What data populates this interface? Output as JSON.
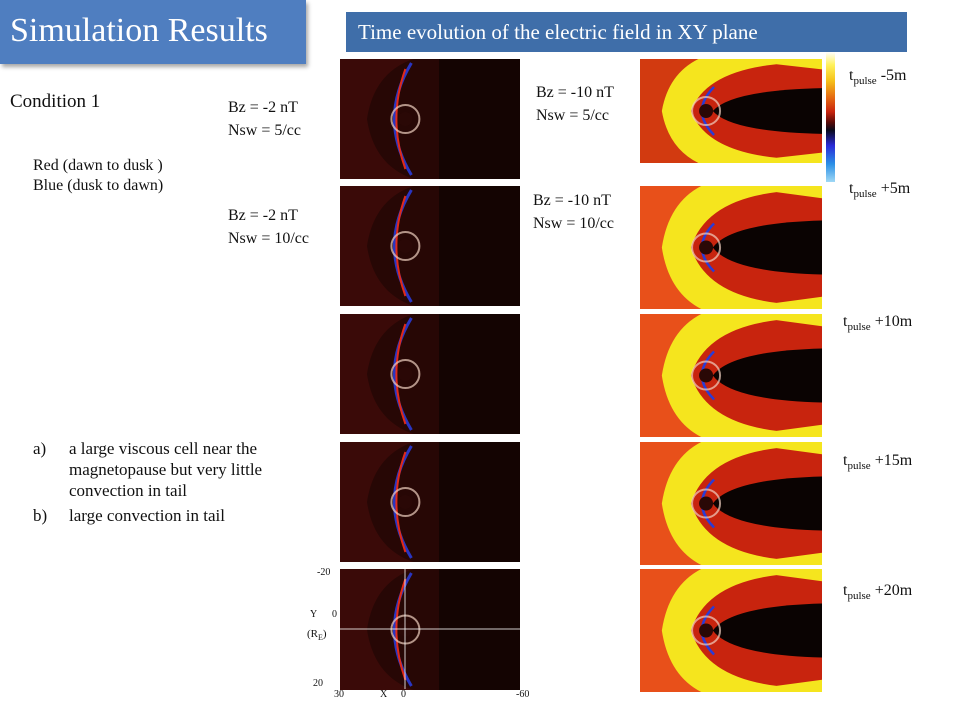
{
  "title": "Simulation  Results",
  "subtitle": "Time evolution of the electric field in XY plane",
  "condition": "Condition 1",
  "legend": {
    "red": "Red (dawn to dusk )",
    "blue": "Blue (dusk to dawn)"
  },
  "left_column_labels": [
    {
      "bz": "Bz = -2 nT",
      "nsw": "Nsw = 5/cc"
    },
    {
      "bz": "Bz = -2 nT",
      "nsw": "Nsw = 10/cc"
    }
  ],
  "right_column_labels": [
    {
      "bz": "Bz = -10 nT",
      "nsw": "Nsw = 5/cc"
    },
    {
      "bz": "Bz = -10 nT",
      "nsw": "Nsw = 10/cc"
    }
  ],
  "times": [
    {
      "base": "t",
      "sub": "pulse",
      "suffix": " -5m"
    },
    {
      "base": "t",
      "sub": "pulse",
      "suffix": " +5m"
    },
    {
      "base": "t",
      "sub": "pulse",
      "suffix": " +10m"
    },
    {
      "base": "t",
      "sub": "pulse",
      "suffix": " +15m"
    },
    {
      "base": "t",
      "sub": "pulse",
      "suffix": " +20m"
    }
  ],
  "notes": [
    {
      "marker": "a)",
      "text": "a large viscous cell near the magnetopause but very little convection in tail"
    },
    {
      "marker": "b)",
      "text": " large convection in tail"
    }
  ],
  "axes": {
    "y_label": "Y",
    "y_unit": "(R",
    "y_unit_sub": "E",
    "y_unit_close": ")",
    "x_label": "X",
    "y_ticks": [
      "-20",
      "0",
      "20"
    ],
    "x_ticks": [
      "30",
      "0",
      "-60"
    ]
  },
  "colors": {
    "title_bg": "#4f7ec0",
    "subtitle_bg": "#3f6ea9",
    "left_panel_bg": "#3a0a08",
    "right_panel_bg": "#d23a10",
    "sheath_yellow": "#f5e51e",
    "blue_field": "#2a3bd6"
  }
}
